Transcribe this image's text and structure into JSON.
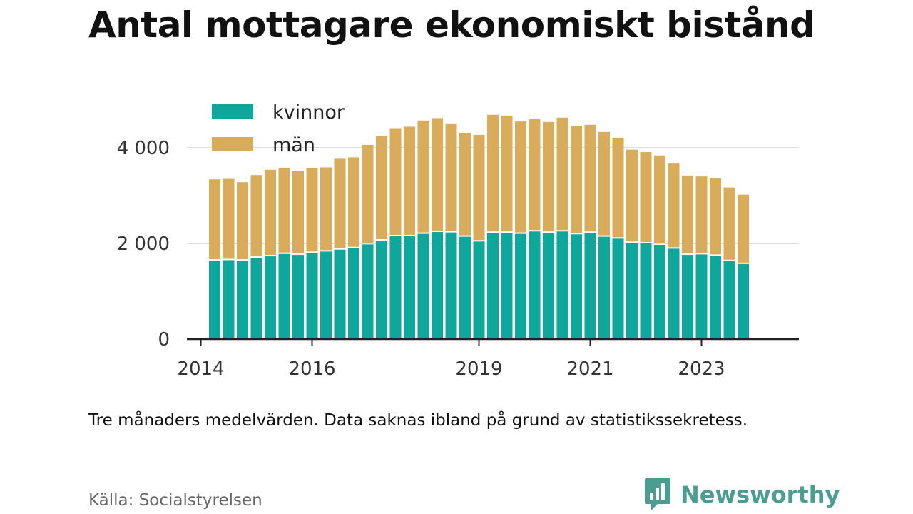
{
  "title": "Antal mottagare ekonomiskt bistånd",
  "note": "Tre månaders medelvärden. Data saknas ibland på grund av statistikssekretess.",
  "source": "Källa: Socialstyrelsen",
  "brand": {
    "name": "Newsworthy",
    "icon": "chart-speech-bubble-icon"
  },
  "colors": {
    "kvinnor": "#0fa79b",
    "man": "#d9ac5b",
    "grid": "#dddddd",
    "axis": "#222222"
  },
  "chart_data": {
    "type": "bar",
    "stacked": true,
    "x_start": 2014.25,
    "x_step": 0.25,
    "xlim": [
      2013.75,
      2024.75
    ],
    "ylim": [
      0,
      5000
    ],
    "x_ticks": [
      2014,
      2016,
      2019,
      2021,
      2023
    ],
    "x_tick_labels": [
      "2014",
      "2016",
      "2019",
      "2021",
      "2023"
    ],
    "y_ticks": [
      0,
      2000,
      4000
    ],
    "y_tick_labels": [
      "0",
      "2 000",
      "4 000"
    ],
    "grid": "horizontal",
    "legend_position": "top-left",
    "series": [
      {
        "name": "kvinnor",
        "values": [
          1640,
          1650,
          1640,
          1700,
          1730,
          1780,
          1760,
          1800,
          1830,
          1870,
          1900,
          1980,
          2060,
          2150,
          2150,
          2200,
          2240,
          2230,
          2140,
          2040,
          2220,
          2220,
          2200,
          2250,
          2220,
          2250,
          2190,
          2220,
          2140,
          2100,
          2010,
          2000,
          1970,
          1890,
          1760,
          1770,
          1740,
          1630,
          1570
        ]
      },
      {
        "name": "män",
        "values": [
          1700,
          1700,
          1640,
          1730,
          1810,
          1800,
          1750,
          1780,
          1760,
          1900,
          1900,
          2080,
          2180,
          2260,
          2290,
          2370,
          2380,
          2280,
          2170,
          2230,
          2470,
          2450,
          2350,
          2350,
          2320,
          2380,
          2270,
          2260,
          2190,
          2110,
          1950,
          1910,
          1870,
          1780,
          1660,
          1630,
          1620,
          1540,
          1450
        ]
      }
    ]
  }
}
